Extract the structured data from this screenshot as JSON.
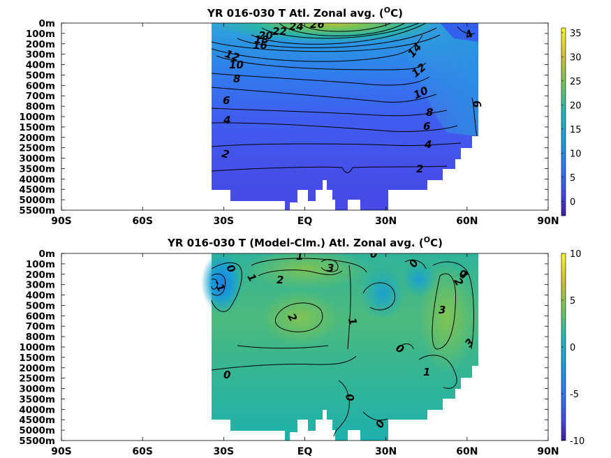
{
  "chart_data": [
    {
      "type": "heatmap",
      "title": "YR 016-030 T Atl. Zonal avg. (",
      "title_sup": "O",
      "title_end": "C)",
      "x_ticks": [
        "90S",
        "60S",
        "30S",
        "EQ",
        "30N",
        "60N",
        "90N"
      ],
      "x_values": [
        -90,
        -60,
        -30,
        0,
        30,
        60,
        90
      ],
      "xlim": [
        -90,
        90
      ],
      "y_ticks": [
        "0m",
        "100m",
        "200m",
        "300m",
        "400m",
        "500m",
        "600m",
        "700m",
        "800m",
        "1000m",
        "1500m",
        "2000m",
        "2500m",
        "3000m",
        "3500m",
        "4000m",
        "4500m",
        "5000m",
        "5500m"
      ],
      "data_extent_lat": [
        -35,
        64
      ],
      "colorbar": {
        "ticks": [
          "35",
          "30",
          "25",
          "20",
          "15",
          "10",
          "5",
          "0"
        ],
        "range": [
          -3,
          36
        ]
      },
      "contour_labels": [
        "26",
        "24",
        "22",
        "20",
        "18",
        "16",
        "14",
        "12",
        "10",
        "8",
        "6",
        "4",
        "2",
        "12",
        "10",
        "8",
        "6",
        "4",
        "2",
        "14",
        "4",
        "6"
      ],
      "surface_max_C": 28,
      "deep_min_C": 1
    },
    {
      "type": "heatmap",
      "title": "YR 016-030 T (Model-Clm.) Atl. Zonal avg. (",
      "title_sup": "O",
      "title_end": "C)",
      "x_ticks": [
        "90S",
        "60S",
        "30S",
        "EQ",
        "30N",
        "60N",
        "90N"
      ],
      "x_values": [
        -90,
        -60,
        -30,
        0,
        30,
        60,
        90
      ],
      "xlim": [
        -90,
        90
      ],
      "y_ticks": [
        "0m",
        "100m",
        "200m",
        "300m",
        "400m",
        "500m",
        "600m",
        "700m",
        "800m",
        "1000m",
        "1500m",
        "2000m",
        "2500m",
        "3000m",
        "3500m",
        "4000m",
        "4500m",
        "5000m",
        "5500m"
      ],
      "data_extent_lat": [
        -35,
        64
      ],
      "colorbar": {
        "ticks": [
          "10",
          "5",
          "0",
          "-5",
          "-10"
        ],
        "range": [
          -10,
          10
        ]
      },
      "contour_labels": [
        "1",
        "3",
        "0",
        "0",
        "0",
        "2",
        "1",
        "2",
        "1",
        "0",
        "3",
        "2",
        "1",
        "3",
        "0",
        "1",
        "0",
        "0",
        "-1",
        "-2",
        "-1"
      ]
    }
  ]
}
